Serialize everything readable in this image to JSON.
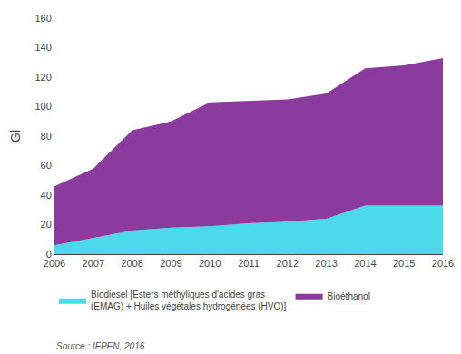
{
  "chart_data": {
    "type": "area",
    "stacked": true,
    "x": [
      2006,
      2007,
      2008,
      2009,
      2010,
      2011,
      2012,
      2013,
      2014,
      2015,
      2016
    ],
    "series": [
      {
        "name": "Biodiesel [Esters méthyliques d'acides gras\n(EMAG) + Huiles végétales hydrogénées (HVO)]",
        "color": "#4DD9EC",
        "values": [
          6,
          11,
          16,
          18,
          19,
          21,
          22,
          24,
          33,
          33,
          33
        ]
      },
      {
        "name": "Bioéthanol",
        "color": "#8B3A9E",
        "values": [
          40,
          47,
          68,
          72,
          84,
          83,
          83,
          85,
          93,
          95,
          100
        ]
      }
    ],
    "ylabel": "Gl",
    "xlim": [
      2006,
      2016
    ],
    "xticks": [
      2006,
      2007,
      2008,
      2009,
      2010,
      2011,
      2012,
      2013,
      2014,
      2015,
      2016
    ],
    "ylim": [
      0,
      160
    ],
    "yticks": [
      0,
      20,
      40,
      60,
      80,
      100,
      120,
      140,
      160
    ],
    "grid": false,
    "legend": "bottom",
    "annotations": [
      "Source : IFPEN, 2016"
    ]
  }
}
